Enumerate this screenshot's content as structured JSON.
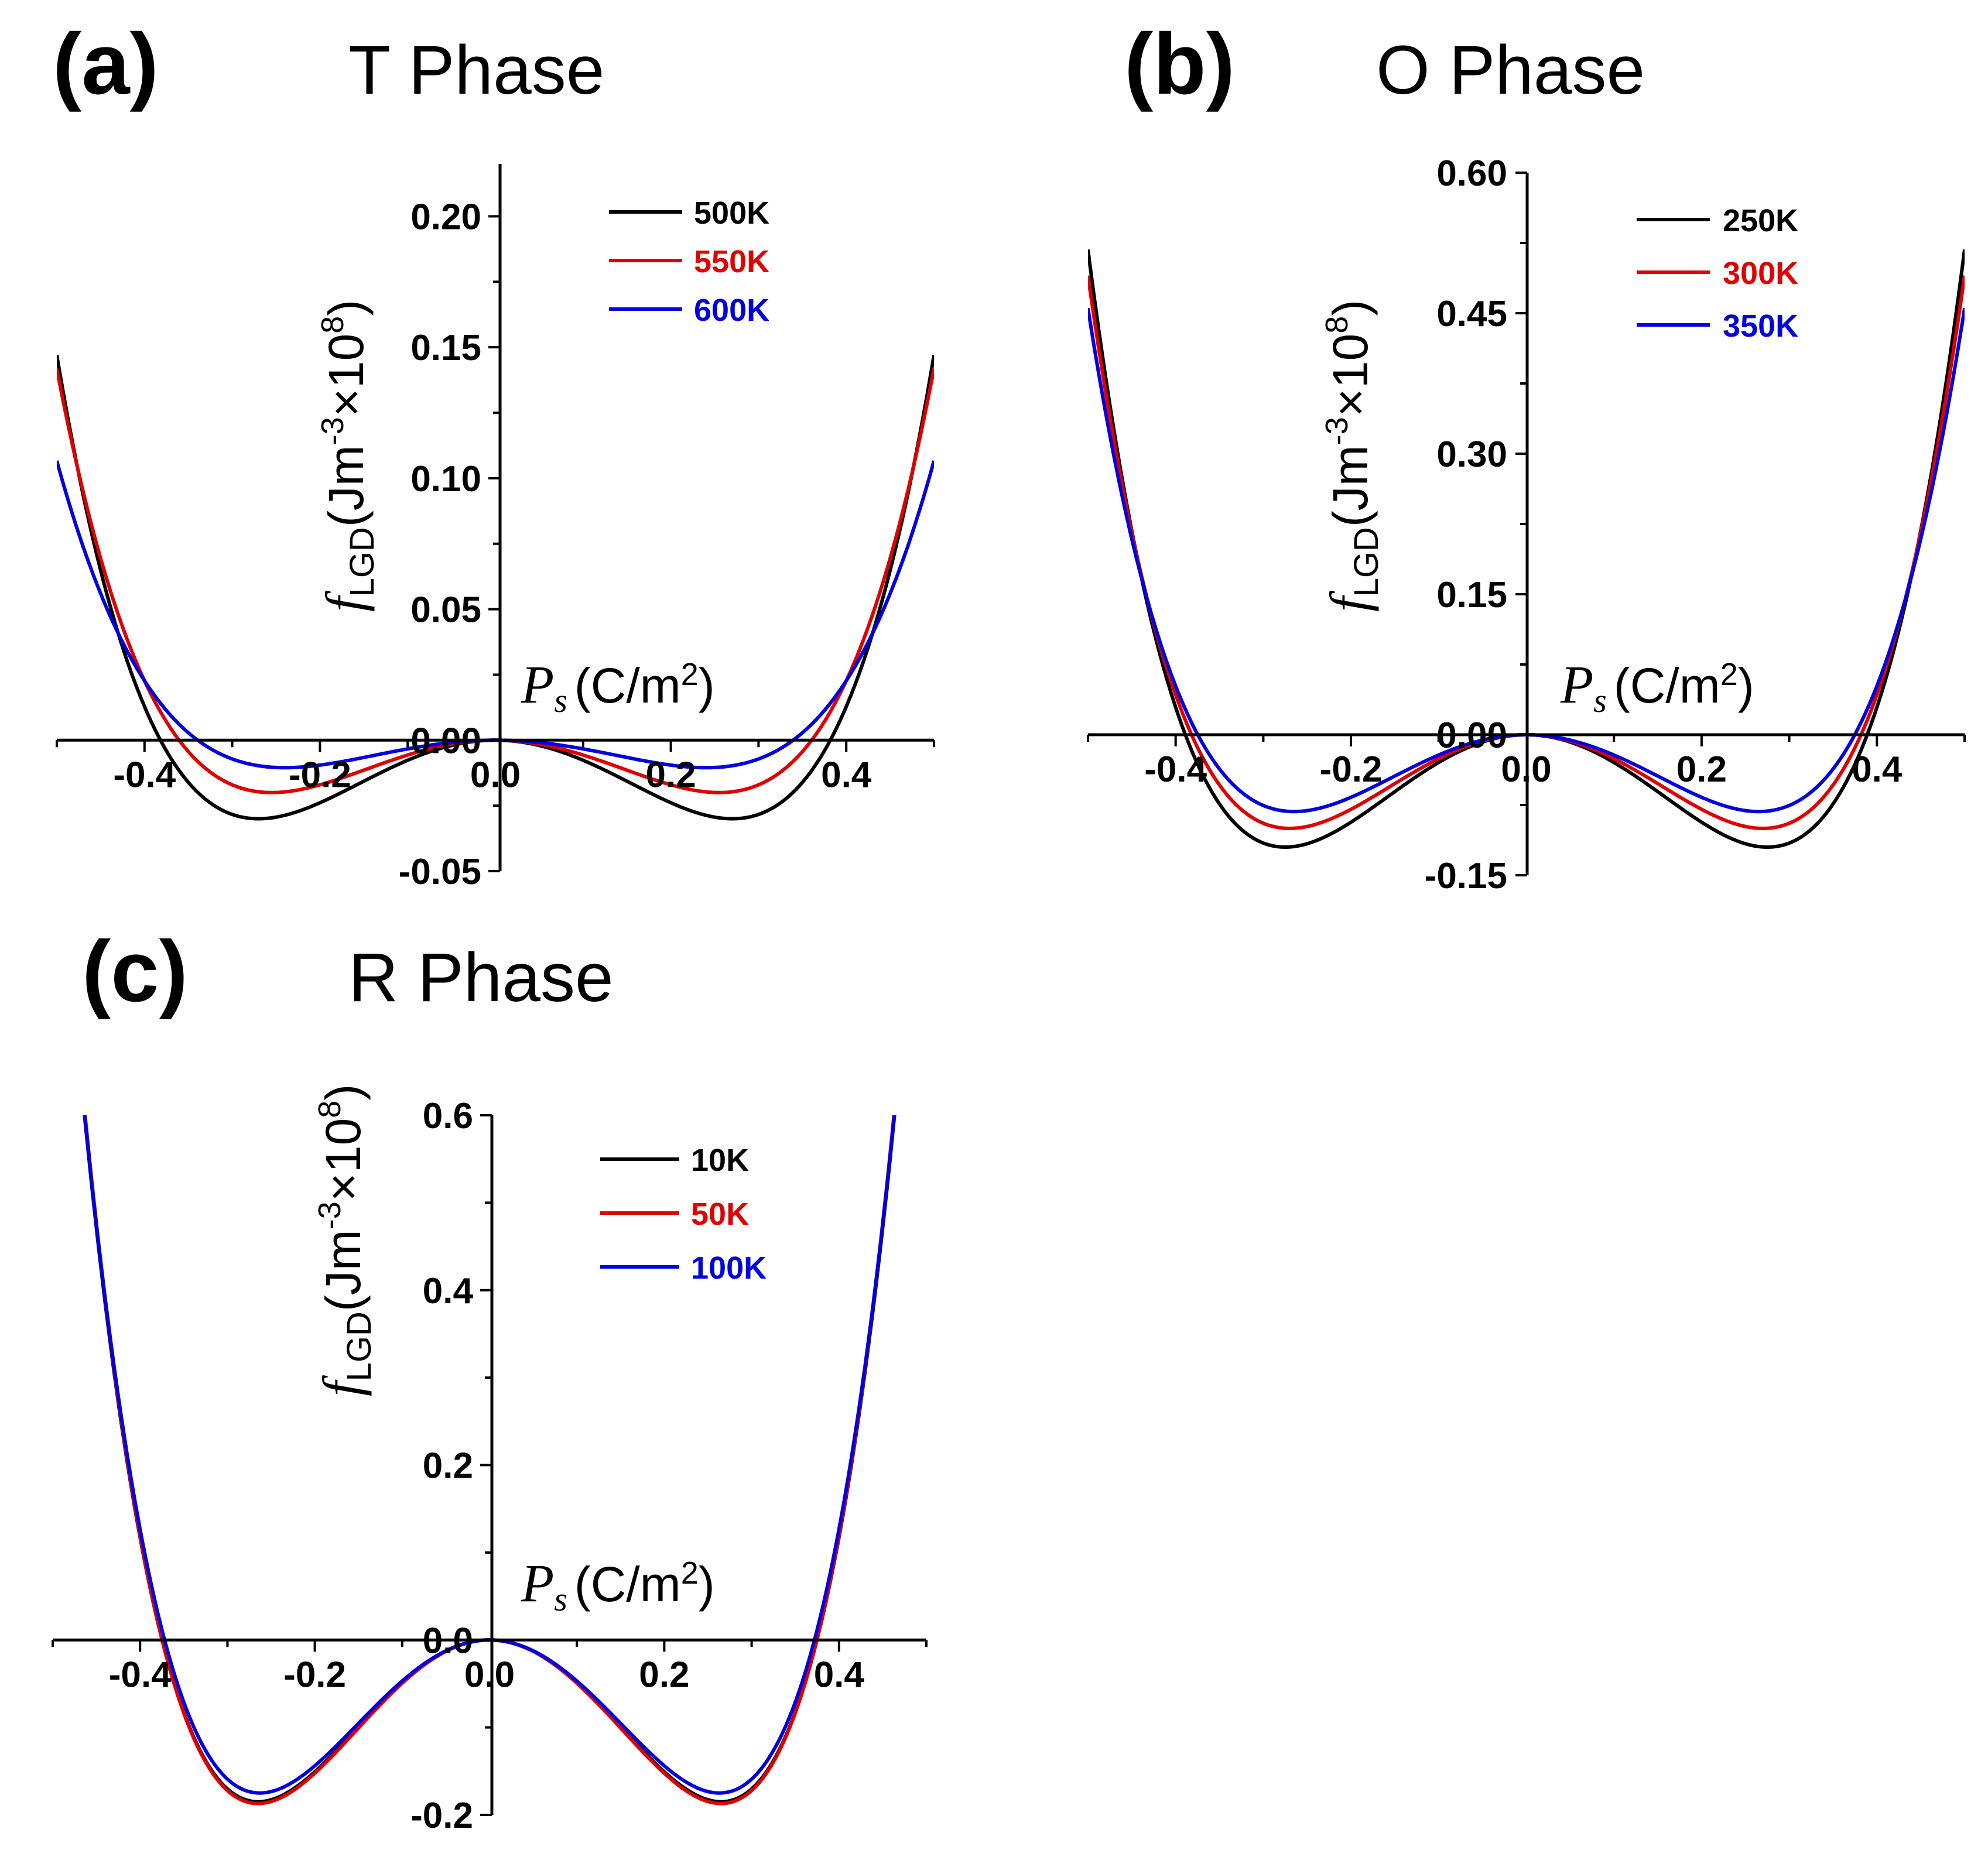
{
  "chart_data": [
    {
      "type": "line",
      "panel_label": "(a)",
      "title": "T Phase",
      "xlabel": {
        "symbol": "P",
        "subscript": "s",
        "unit": "(C/m",
        "sup": "2",
        "close": ")"
      },
      "ylabel": {
        "symbol": "f",
        "subscript": "LGD",
        "prefix": "(Jm",
        "sup1": "-3",
        "times": "×10",
        "sup2": "8",
        "close": ")"
      },
      "xlim": [
        -0.5,
        0.5
      ],
      "ylim": [
        -0.05,
        0.22
      ],
      "xticks": [
        -0.4,
        -0.2,
        0.0,
        0.2,
        0.4
      ],
      "xtick_labels": [
        "-0.4",
        "-0.2",
        "0.0",
        "0.2",
        "0.4"
      ],
      "yticks": [
        -0.05,
        0.0,
        0.05,
        0.1,
        0.15,
        0.2
      ],
      "ytick_labels": [
        "-0.05",
        "0.00",
        "0.05",
        "0.10",
        "0.15",
        "0.20"
      ],
      "legend_position": "top-right",
      "series": [
        {
          "name": "500K",
          "color": "#000000",
          "pmin": 0.27,
          "fmin": -0.03
        },
        {
          "name": "550K",
          "color": "#e00000",
          "pmin": 0.255,
          "fmin": -0.02
        },
        {
          "name": "600K",
          "color": "#0000e0",
          "pmin": 0.24,
          "fmin": -0.0105
        }
      ]
    },
    {
      "type": "line",
      "panel_label": "(b)",
      "title": "O Phase",
      "xlabel": {
        "symbol": "P",
        "subscript": "s",
        "unit": "(C/m",
        "sup": "2",
        "close": ")"
      },
      "ylabel": {
        "symbol": "f",
        "subscript": "LGD",
        "prefix": "(Jm",
        "sup1": "-3",
        "times": "×10",
        "sup2": "8",
        "close": ")"
      },
      "xlim": [
        -0.5,
        0.5
      ],
      "ylim": [
        -0.15,
        0.6
      ],
      "xticks": [
        -0.4,
        -0.2,
        0.0,
        0.2,
        0.4
      ],
      "xtick_labels": [
        "-0.4",
        "-0.2",
        "0.0",
        "0.2",
        "0.4"
      ],
      "yticks": [
        -0.15,
        0.0,
        0.15,
        0.3,
        0.45,
        0.6
      ],
      "ytick_labels": [
        "-0.15",
        "0.00",
        "0.15",
        "0.30",
        "0.45",
        "0.60"
      ],
      "legend_position": "top-right",
      "series": [
        {
          "name": "250K",
          "color": "#000000",
          "pmin": 0.275,
          "fmin": -0.12
        },
        {
          "name": "300K",
          "color": "#e00000",
          "pmin": 0.27,
          "fmin": -0.1
        },
        {
          "name": "350K",
          "color": "#0000e0",
          "pmin": 0.265,
          "fmin": -0.082
        }
      ]
    },
    {
      "type": "line",
      "panel_label": "(c)",
      "title": "R Phase",
      "xlabel": {
        "symbol": "P",
        "subscript": "s",
        "unit": "(C/m",
        "sup": "2",
        "close": ")"
      },
      "ylabel": {
        "symbol": "f",
        "subscript": "LGD",
        "prefix": "(Jm",
        "sup1": "-3",
        "times": "×10",
        "sup2": "8",
        "close": ")"
      },
      "xlim": [
        -0.5,
        0.5
      ],
      "ylim": [
        -0.2,
        0.6
      ],
      "xticks": [
        -0.4,
        -0.2,
        0.0,
        0.2,
        0.4
      ],
      "xtick_labels": [
        "-0.4",
        "-0.2",
        "0.0",
        "0.2",
        "0.4"
      ],
      "yticks": [
        -0.2,
        0.0,
        0.2,
        0.4,
        0.6
      ],
      "ytick_labels": [
        "-0.2",
        "0.0",
        "0.2",
        "0.4",
        "0.6"
      ],
      "legend_position": "top-right",
      "series": [
        {
          "name": "10K",
          "color": "#000000",
          "pmin": 0.265,
          "fmin": -0.185
        },
        {
          "name": "50K",
          "color": "#e00000",
          "pmin": 0.265,
          "fmin": -0.187
        },
        {
          "name": "100K",
          "color": "#0000e0",
          "pmin": 0.263,
          "fmin": -0.175
        }
      ]
    }
  ]
}
